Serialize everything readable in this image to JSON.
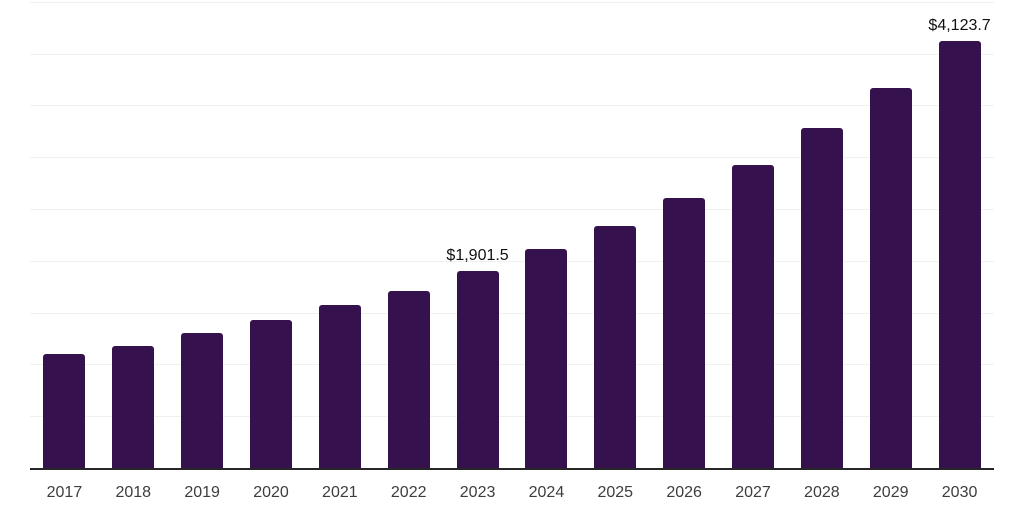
{
  "chart_data": {
    "type": "bar",
    "title": "",
    "xlabel": "",
    "ylabel": "",
    "categories": [
      "2017",
      "2018",
      "2019",
      "2020",
      "2021",
      "2022",
      "2023",
      "2024",
      "2025",
      "2026",
      "2027",
      "2028",
      "2029",
      "2030"
    ],
    "values": [
      1100,
      1175,
      1300,
      1430,
      1575,
      1710,
      1901.5,
      2110,
      2340,
      2610,
      2925,
      3280,
      3670,
      4123.7
    ],
    "data_labels": {
      "2023": "$1,901.5",
      "2030": "$4,123.7"
    },
    "ylim": [
      0,
      4500
    ],
    "gridline_step": 500,
    "grid": true,
    "legend": "none",
    "y_tick_labels": "none"
  },
  "style": {
    "bar_color": "#35114d",
    "grid_color": "#f0f0f0",
    "axis_color": "#262626",
    "tick_label_color": "#3d3d3d",
    "data_label_color": "#111111",
    "background_color": "#ffffff"
  }
}
